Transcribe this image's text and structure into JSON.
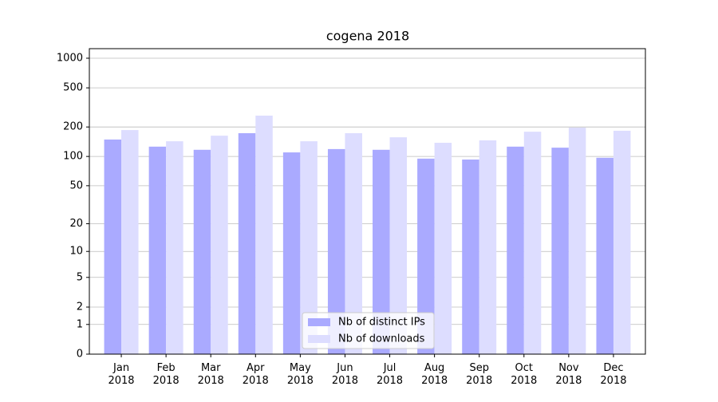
{
  "chart_data": {
    "type": "bar",
    "title": "cogena 2018",
    "categories": [
      "Jan\n2018",
      "Feb\n2018",
      "Mar\n2018",
      "Apr\n2018",
      "May\n2018",
      "Jun\n2018",
      "Jul\n2018",
      "Aug\n2018",
      "Sep\n2018",
      "Oct\n2018",
      "Nov\n2018",
      "Dec\n2018"
    ],
    "series": [
      {
        "name": "Nb of distinct IPs",
        "color": "#aaaaff",
        "values": [
          149,
          126,
          117,
          173,
          110,
          119,
          117,
          95,
          93,
          126,
          123,
          97
        ]
      },
      {
        "name": "Nb of downloads",
        "color": "#ddddff",
        "values": [
          186,
          143,
          163,
          261,
          143,
          173,
          157,
          138,
          146,
          179,
          197,
          183
        ]
      }
    ],
    "yscale": "log1p",
    "ylim": [
      0,
      1250
    ],
    "yticks": [
      0,
      1,
      2,
      5,
      10,
      20,
      50,
      100,
      200,
      500,
      1000
    ],
    "grid": true,
    "legend": "lower center"
  }
}
